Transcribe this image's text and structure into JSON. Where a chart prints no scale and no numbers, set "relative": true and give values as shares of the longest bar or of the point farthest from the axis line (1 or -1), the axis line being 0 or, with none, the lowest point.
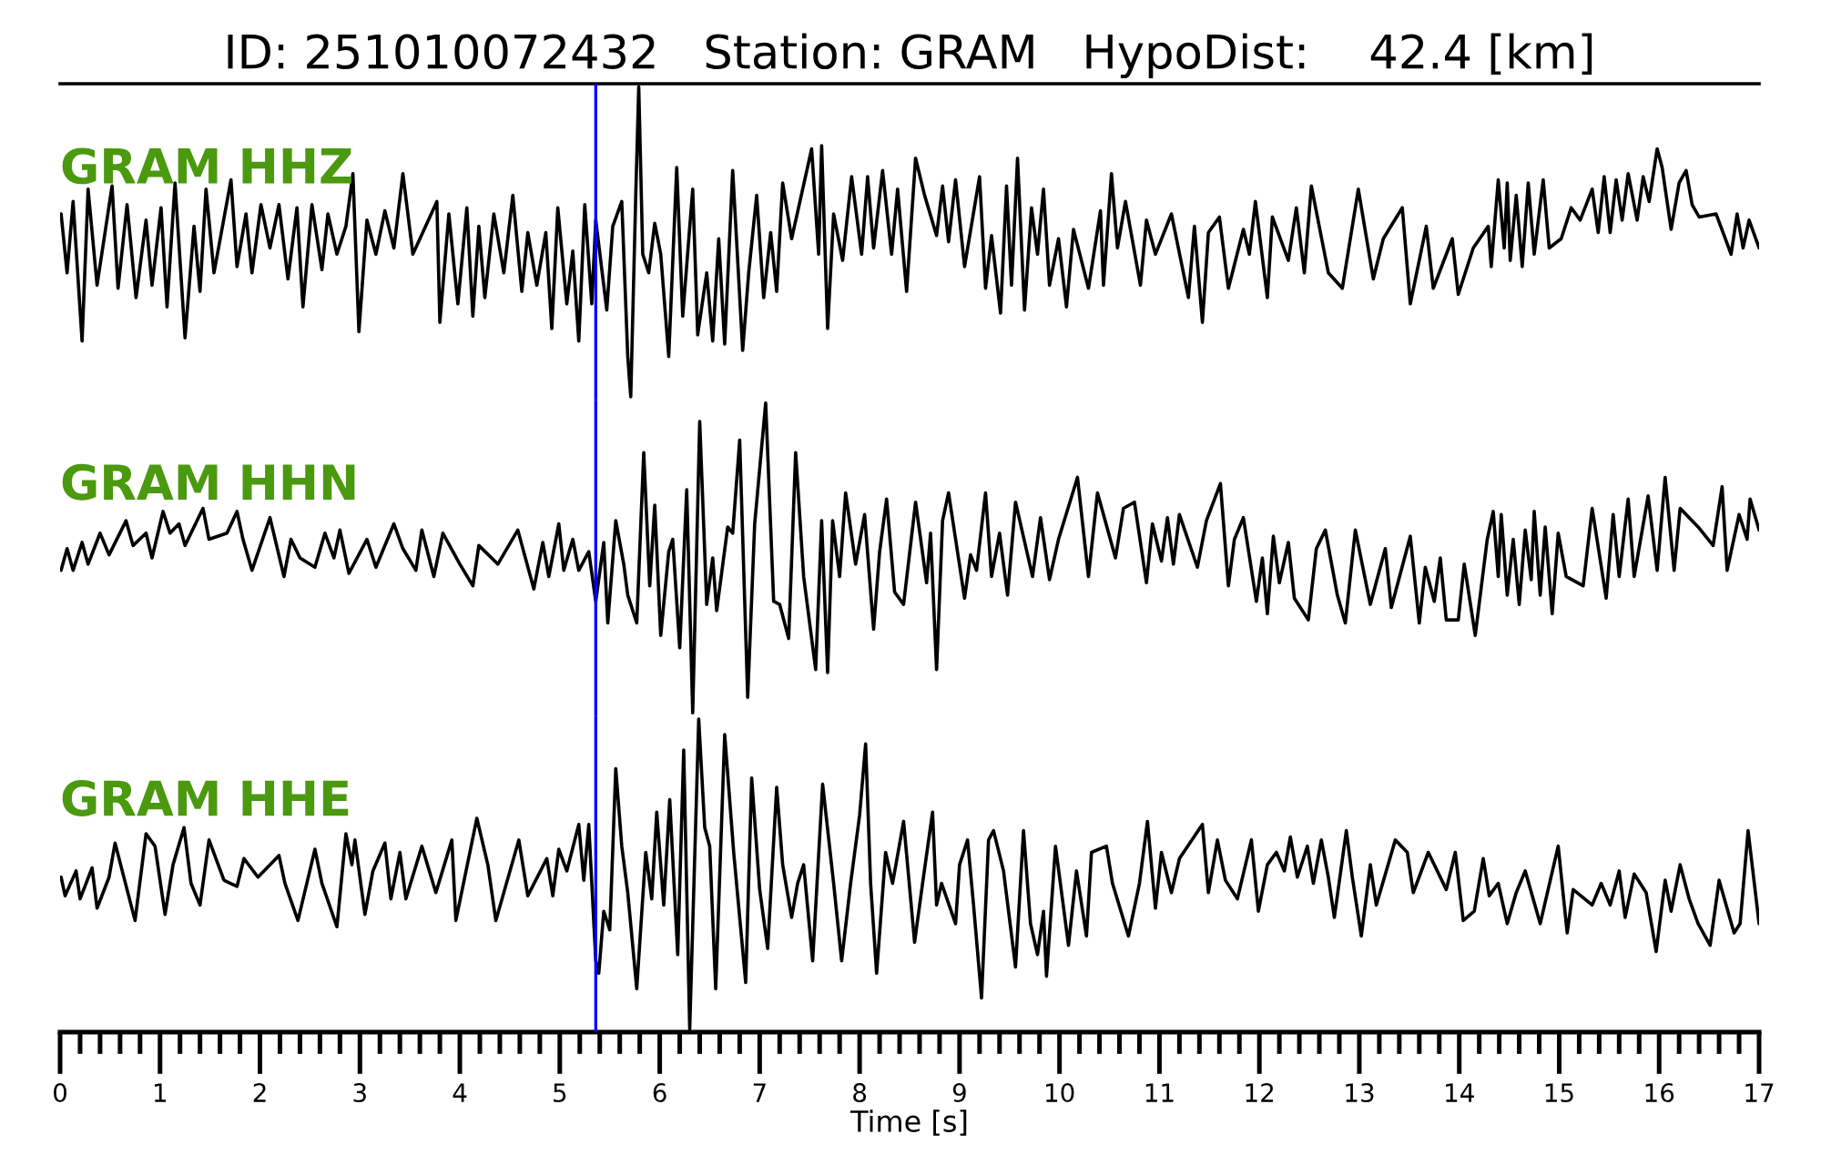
{
  "chart_data": [
    {
      "type": "line",
      "title": "ID: 251010072432   Station: GRAM   HypoDist:    42.4 [km]",
      "relative": true,
      "xlim": [
        0,
        17
      ],
      "tick_labels": false,
      "ref_lines": [
        {
          "axis": "x",
          "value": 5.36,
          "color": "#0000ff"
        }
      ],
      "series": [
        {
          "name": "GRAM HHZ",
          "color": "#000000",
          "x": [
            0.01,
            0.07,
            0.13,
            0.22,
            0.28,
            0.37,
            0.52,
            0.58,
            0.67,
            0.76,
            0.86,
            0.92,
            1.01,
            1.07,
            1.15,
            1.25,
            1.34,
            1.4,
            1.46,
            1.54,
            1.71,
            1.77,
            1.86,
            1.92,
            2.01,
            2.1,
            2.19,
            2.28,
            2.37,
            2.43,
            2.52,
            2.62,
            2.68,
            2.77,
            2.86,
            2.93,
            2.99,
            3.07,
            3.16,
            3.25,
            3.34,
            3.43,
            3.53,
            3.77,
            3.8,
            3.89,
            3.98,
            4.07,
            4.13,
            4.19,
            4.25,
            4.34,
            4.44,
            4.53,
            4.62,
            4.68,
            4.77,
            4.86,
            4.92,
            4.98,
            5.07,
            5.13,
            5.19,
            5.25,
            5.32,
            5.36,
            5.47,
            5.53,
            5.62,
            5.68,
            5.71,
            5.76,
            5.79,
            5.83,
            5.89,
            5.95,
            6.01,
            6.09,
            6.17,
            6.23,
            6.33,
            6.38,
            6.47,
            6.53,
            6.59,
            6.65,
            6.73,
            6.83,
            6.89,
            6.97,
            7.04,
            7.11,
            7.17,
            7.23,
            7.32,
            7.52,
            7.59,
            7.62,
            7.68,
            7.74,
            7.83,
            7.92,
            8.02,
            8.08,
            8.14,
            8.23,
            8.32,
            8.38,
            8.47,
            8.56,
            8.65,
            8.77,
            8.83,
            8.89,
            8.96,
            9.05,
            9.2,
            9.26,
            9.32,
            9.41,
            9.47,
            9.52,
            9.58,
            9.65,
            9.72,
            9.78,
            9.84,
            9.9,
            9.99,
            10.07,
            10.14,
            10.29,
            10.41,
            10.44,
            10.52,
            10.58,
            10.66,
            10.81,
            10.87,
            10.96,
            11.12,
            11.29,
            11.35,
            11.43,
            11.49,
            11.6,
            11.69,
            11.84,
            11.9,
            11.96,
            12.08,
            12.13,
            12.29,
            12.37,
            12.45,
            12.52,
            12.69,
            12.83,
            12.99,
            13.14,
            13.24,
            13.43,
            13.51,
            13.67,
            13.74,
            13.93,
            13.99,
            14.14,
            14.29,
            14.32,
            14.39,
            14.45,
            14.48,
            14.51,
            14.57,
            14.63,
            14.69,
            14.75,
            14.84,
            14.9,
            15.02,
            15.12,
            15.21,
            15.33,
            15.39,
            15.45,
            15.51,
            15.57,
            15.63,
            15.69,
            15.78,
            15.84,
            15.9,
            15.98,
            16.03,
            16.12,
            16.2,
            16.27,
            16.33,
            16.4,
            16.57,
            16.72,
            16.78,
            16.84,
            16.9,
            17.0
          ],
          "values": [
            0.59,
            0.4,
            0.63,
            0.18,
            0.67,
            0.36,
            0.68,
            0.35,
            0.62,
            0.32,
            0.57,
            0.36,
            0.61,
            0.29,
            0.69,
            0.19,
            0.55,
            0.34,
            0.67,
            0.4,
            0.7,
            0.42,
            0.59,
            0.4,
            0.62,
            0.48,
            0.62,
            0.38,
            0.61,
            0.29,
            0.62,
            0.41,
            0.59,
            0.46,
            0.55,
            0.72,
            0.21,
            0.57,
            0.46,
            0.6,
            0.48,
            0.72,
            0.46,
            0.63,
            0.24,
            0.59,
            0.3,
            0.61,
            0.26,
            0.55,
            0.32,
            0.59,
            0.4,
            0.65,
            0.34,
            0.53,
            0.36,
            0.53,
            0.22,
            0.61,
            0.3,
            0.47,
            0.18,
            0.62,
            0.3,
            0.57,
            0.28,
            0.55,
            0.63,
            0.13,
            0.0,
            0.65,
            1.0,
            0.46,
            0.4,
            0.56,
            0.46,
            0.13,
            0.74,
            0.26,
            0.67,
            0.2,
            0.4,
            0.18,
            0.51,
            0.17,
            0.73,
            0.15,
            0.4,
            0.65,
            0.32,
            0.53,
            0.34,
            0.69,
            0.51,
            0.8,
            0.46,
            0.81,
            0.22,
            0.59,
            0.44,
            0.71,
            0.46,
            0.71,
            0.48,
            0.73,
            0.46,
            0.67,
            0.34,
            0.77,
            0.65,
            0.52,
            0.68,
            0.5,
            0.7,
            0.42,
            0.71,
            0.35,
            0.52,
            0.27,
            0.68,
            0.36,
            0.77,
            0.28,
            0.61,
            0.46,
            0.67,
            0.36,
            0.51,
            0.29,
            0.54,
            0.35,
            0.6,
            0.36,
            0.72,
            0.48,
            0.63,
            0.36,
            0.57,
            0.46,
            0.59,
            0.32,
            0.55,
            0.24,
            0.53,
            0.58,
            0.35,
            0.54,
            0.46,
            0.63,
            0.32,
            0.58,
            0.44,
            0.61,
            0.4,
            0.68,
            0.4,
            0.35,
            0.67,
            0.38,
            0.51,
            0.61,
            0.3,
            0.55,
            0.35,
            0.51,
            0.33,
            0.48,
            0.55,
            0.42,
            0.7,
            0.48,
            0.69,
            0.44,
            0.65,
            0.42,
            0.69,
            0.46,
            0.7,
            0.48,
            0.51,
            0.61,
            0.57,
            0.67,
            0.53,
            0.71,
            0.53,
            0.7,
            0.57,
            0.72,
            0.57,
            0.71,
            0.63,
            0.8,
            0.74,
            0.54,
            0.69,
            0.73,
            0.62,
            0.58,
            0.59,
            0.46,
            0.59,
            0.48,
            0.57,
            0.48
          ]
        }
      ]
    },
    {
      "type": "line",
      "relative": true,
      "xlim": [
        0,
        17
      ],
      "tick_labels": false,
      "ref_lines": [
        {
          "axis": "x",
          "value": 5.36,
          "color": "#0000ff"
        }
      ],
      "series": [
        {
          "name": "GRAM HHN",
          "color": "#000000",
          "x": [
            0.01,
            0.07,
            0.13,
            0.22,
            0.28,
            0.4,
            0.49,
            0.66,
            0.73,
            0.86,
            0.92,
            1.03,
            1.1,
            1.19,
            1.25,
            1.43,
            1.49,
            1.67,
            1.77,
            1.83,
            1.92,
            2.1,
            2.24,
            2.31,
            2.4,
            2.55,
            2.65,
            2.74,
            2.8,
            2.89,
            3.07,
            3.16,
            3.34,
            3.43,
            3.56,
            3.62,
            3.74,
            3.83,
            4.0,
            4.13,
            4.19,
            4.38,
            4.58,
            4.74,
            4.83,
            4.89,
            4.99,
            5.04,
            5.13,
            5.19,
            5.29,
            5.36,
            5.44,
            5.48,
            5.56,
            5.64,
            5.68,
            5.77,
            5.84,
            5.9,
            5.95,
            6.01,
            6.09,
            6.13,
            6.2,
            6.27,
            6.33,
            6.4,
            6.47,
            6.53,
            6.57,
            6.68,
            6.73,
            6.8,
            6.88,
            6.95,
            7.06,
            7.14,
            7.2,
            7.29,
            7.36,
            7.44,
            7.56,
            7.62,
            7.68,
            7.73,
            7.8,
            7.86,
            7.96,
            8.05,
            8.14,
            8.2,
            8.27,
            8.35,
            8.44,
            8.56,
            8.67,
            8.71,
            8.77,
            8.83,
            8.89,
            9.05,
            9.11,
            9.17,
            9.26,
            9.32,
            9.4,
            9.48,
            9.56,
            9.73,
            9.81,
            9.9,
            9.99,
            10.18,
            10.29,
            10.38,
            10.56,
            10.64,
            10.75,
            10.87,
            10.93,
            11.02,
            11.08,
            11.14,
            11.2,
            11.38,
            11.47,
            11.61,
            11.69,
            11.75,
            11.84,
            11.97,
            12.03,
            12.08,
            12.14,
            12.2,
            12.29,
            12.35,
            12.49,
            12.57,
            12.66,
            12.78,
            12.86,
            12.96,
            13.11,
            13.26,
            13.32,
            13.51,
            13.6,
            13.66,
            13.75,
            13.81,
            13.87,
            13.99,
            14.05,
            14.16,
            14.28,
            14.34,
            14.39,
            14.42,
            14.48,
            14.54,
            14.6,
            14.66,
            14.72,
            14.75,
            14.81,
            14.86,
            14.93,
            14.99,
            15.07,
            15.24,
            15.33,
            15.47,
            15.54,
            15.6,
            15.69,
            15.75,
            15.89,
            15.98,
            16.06,
            16.15,
            16.21,
            16.39,
            16.54,
            16.63,
            16.68,
            16.8,
            16.88,
            16.91,
            17.0
          ],
          "values": [
            0.46,
            0.53,
            0.46,
            0.55,
            0.48,
            0.58,
            0.51,
            0.62,
            0.54,
            0.58,
            0.5,
            0.65,
            0.58,
            0.61,
            0.54,
            0.66,
            0.56,
            0.58,
            0.65,
            0.56,
            0.46,
            0.63,
            0.44,
            0.56,
            0.5,
            0.47,
            0.58,
            0.5,
            0.59,
            0.45,
            0.56,
            0.47,
            0.61,
            0.53,
            0.46,
            0.59,
            0.44,
            0.58,
            0.48,
            0.41,
            0.54,
            0.48,
            0.59,
            0.4,
            0.55,
            0.44,
            0.61,
            0.46,
            0.56,
            0.46,
            0.52,
            0.36,
            0.55,
            0.29,
            0.62,
            0.48,
            0.38,
            0.29,
            0.84,
            0.41,
            0.67,
            0.25,
            0.52,
            0.56,
            0.21,
            0.72,
            0.0,
            0.94,
            0.35,
            0.5,
            0.33,
            0.6,
            0.58,
            0.88,
            0.05,
            0.61,
            1.0,
            0.36,
            0.35,
            0.24,
            0.84,
            0.44,
            0.14,
            0.62,
            0.13,
            0.62,
            0.44,
            0.71,
            0.48,
            0.64,
            0.27,
            0.52,
            0.69,
            0.39,
            0.35,
            0.68,
            0.42,
            0.58,
            0.14,
            0.62,
            0.71,
            0.37,
            0.51,
            0.46,
            0.71,
            0.44,
            0.58,
            0.38,
            0.68,
            0.44,
            0.63,
            0.43,
            0.56,
            0.76,
            0.44,
            0.71,
            0.5,
            0.66,
            0.68,
            0.42,
            0.61,
            0.49,
            0.63,
            0.48,
            0.64,
            0.47,
            0.62,
            0.74,
            0.41,
            0.56,
            0.63,
            0.36,
            0.5,
            0.32,
            0.57,
            0.42,
            0.55,
            0.37,
            0.3,
            0.53,
            0.59,
            0.38,
            0.29,
            0.59,
            0.35,
            0.53,
            0.34,
            0.57,
            0.29,
            0.47,
            0.36,
            0.5,
            0.3,
            0.3,
            0.48,
            0.25,
            0.56,
            0.65,
            0.44,
            0.64,
            0.38,
            0.56,
            0.35,
            0.59,
            0.43,
            0.65,
            0.38,
            0.6,
            0.32,
            0.58,
            0.44,
            0.41,
            0.66,
            0.37,
            0.64,
            0.44,
            0.69,
            0.44,
            0.7,
            0.46,
            0.76,
            0.46,
            0.66,
            0.6,
            0.54,
            0.73,
            0.46,
            0.64,
            0.56,
            0.69,
            0.59
          ]
        }
      ]
    },
    {
      "type": "line",
      "relative": true,
      "xlabel": "Time [s]",
      "xlim": [
        0,
        17
      ],
      "tick_labels": "x",
      "xticks": [
        0,
        {
          "value": 0.2,
          "label": null
        },
        {
          "value": 0.4,
          "label": null
        },
        {
          "value": 0.6,
          "label": null
        },
        {
          "value": 0.8,
          "label": null
        },
        1,
        {
          "value": 1.2,
          "label": null
        },
        {
          "value": 1.4,
          "label": null
        },
        {
          "value": 1.6,
          "label": null
        },
        {
          "value": 1.8,
          "label": null
        },
        2,
        {
          "value": 2.2,
          "label": null
        },
        {
          "value": 2.4,
          "label": null
        },
        {
          "value": 2.6,
          "label": null
        },
        {
          "value": 2.8,
          "label": null
        },
        3,
        {
          "value": 3.2,
          "label": null
        },
        {
          "value": 3.4,
          "label": null
        },
        {
          "value": 3.6,
          "label": null
        },
        {
          "value": 3.8,
          "label": null
        },
        4,
        {
          "value": 4.2,
          "label": null
        },
        {
          "value": 4.4,
          "label": null
        },
        {
          "value": 4.6,
          "label": null
        },
        {
          "value": 4.8,
          "label": null
        },
        5,
        {
          "value": 5.2,
          "label": null
        },
        {
          "value": 5.4,
          "label": null
        },
        {
          "value": 5.6,
          "label": null
        },
        {
          "value": 5.8,
          "label": null
        },
        6,
        {
          "value": 6.2,
          "label": null
        },
        {
          "value": 6.4,
          "label": null
        },
        {
          "value": 6.6,
          "label": null
        },
        {
          "value": 6.8,
          "label": null
        },
        7,
        {
          "value": 7.2,
          "label": null
        },
        {
          "value": 7.4,
          "label": null
        },
        {
          "value": 7.6,
          "label": null
        },
        {
          "value": 7.8,
          "label": null
        },
        8,
        {
          "value": 8.2,
          "label": null
        },
        {
          "value": 8.4,
          "label": null
        },
        {
          "value": 8.6,
          "label": null
        },
        {
          "value": 8.8,
          "label": null
        },
        9,
        {
          "value": 9.2,
          "label": null
        },
        {
          "value": 9.4,
          "label": null
        },
        {
          "value": 9.6,
          "label": null
        },
        {
          "value": 9.8,
          "label": null
        },
        10,
        {
          "value": 10.2,
          "label": null
        },
        {
          "value": 10.4,
          "label": null
        },
        {
          "value": 10.6,
          "label": null
        },
        {
          "value": 10.8,
          "label": null
        },
        11,
        {
          "value": 11.2,
          "label": null
        },
        {
          "value": 11.4,
          "label": null
        },
        {
          "value": 11.6,
          "label": null
        },
        {
          "value": 11.8,
          "label": null
        },
        12,
        {
          "value": 12.2,
          "label": null
        },
        {
          "value": 12.4,
          "label": null
        },
        {
          "value": 12.6,
          "label": null
        },
        {
          "value": 12.8,
          "label": null
        },
        13,
        {
          "value": 13.2,
          "label": null
        },
        {
          "value": 13.4,
          "label": null
        },
        {
          "value": 13.6,
          "label": null
        },
        {
          "value": 13.8,
          "label": null
        },
        14,
        {
          "value": 14.2,
          "label": null
        },
        {
          "value": 14.4,
          "label": null
        },
        {
          "value": 14.6,
          "label": null
        },
        {
          "value": 14.8,
          "label": null
        },
        15,
        {
          "value": 15.2,
          "label": null
        },
        {
          "value": 15.4,
          "label": null
        },
        {
          "value": 15.6,
          "label": null
        },
        {
          "value": 15.8,
          "label": null
        },
        16,
        {
          "value": 16.2,
          "label": null
        },
        {
          "value": 16.4,
          "label": null
        },
        {
          "value": 16.6,
          "label": null
        },
        {
          "value": 16.8,
          "label": null
        },
        17
      ],
      "ref_lines": [
        {
          "axis": "x",
          "value": 5.36,
          "color": "#0000ff"
        }
      ],
      "series": [
        {
          "name": "GRAM HHE",
          "color": "#000000",
          "x": [
            0.01,
            0.05,
            0.16,
            0.2,
            0.32,
            0.37,
            0.49,
            0.55,
            0.67,
            0.75,
            0.86,
            0.95,
            1.05,
            1.13,
            1.24,
            1.31,
            1.4,
            1.49,
            1.64,
            1.77,
            1.84,
            1.98,
            2.19,
            2.25,
            2.38,
            2.55,
            2.62,
            2.77,
            2.86,
            2.92,
            2.95,
            3.05,
            3.13,
            3.25,
            3.31,
            3.4,
            3.46,
            3.62,
            3.76,
            3.92,
            3.96,
            4.17,
            4.28,
            4.36,
            4.59,
            4.68,
            4.87,
            4.93,
            4.99,
            5.07,
            5.19,
            5.24,
            5.29,
            5.36,
            5.39,
            5.44,
            5.5,
            5.56,
            5.62,
            5.68,
            5.77,
            5.86,
            5.92,
            5.97,
            6.04,
            6.1,
            6.18,
            6.24,
            6.3,
            6.39,
            6.45,
            6.5,
            6.56,
            6.65,
            6.74,
            6.86,
            6.92,
            7.0,
            7.08,
            7.17,
            7.23,
            7.32,
            7.38,
            7.44,
            7.53,
            7.63,
            7.74,
            7.82,
            7.91,
            8.0,
            8.06,
            8.11,
            8.17,
            8.26,
            8.33,
            8.44,
            8.55,
            8.63,
            8.73,
            8.77,
            8.82,
            8.96,
            9.0,
            9.08,
            9.14,
            9.22,
            9.29,
            9.34,
            9.44,
            9.56,
            9.64,
            9.71,
            9.78,
            9.84,
            9.87,
            9.96,
            10.09,
            10.17,
            10.27,
            10.32,
            10.47,
            10.53,
            10.69,
            10.8,
            10.88,
            10.96,
            11.02,
            11.12,
            11.2,
            11.43,
            11.49,
            11.58,
            11.66,
            11.78,
            11.92,
            11.99,
            12.08,
            12.17,
            12.25,
            12.31,
            12.38,
            12.48,
            12.54,
            12.62,
            12.69,
            12.75,
            12.87,
            12.93,
            13.02,
            13.11,
            13.17,
            13.36,
            13.48,
            13.54,
            13.69,
            13.87,
            13.96,
            14.04,
            14.15,
            14.24,
            14.3,
            14.39,
            14.48,
            14.57,
            14.66,
            14.81,
            14.99,
            15.08,
            15.14,
            15.33,
            15.42,
            15.51,
            15.6,
            15.66,
            15.75,
            15.87,
            15.97,
            16.06,
            16.12,
            16.21,
            16.3,
            16.39,
            16.51,
            16.6,
            16.75,
            16.81,
            16.89,
            17.0
          ],
          "values": [
            0.49,
            0.43,
            0.51,
            0.42,
            0.52,
            0.39,
            0.49,
            0.6,
            0.45,
            0.35,
            0.63,
            0.59,
            0.37,
            0.53,
            0.65,
            0.47,
            0.4,
            0.61,
            0.48,
            0.46,
            0.55,
            0.49,
            0.56,
            0.47,
            0.35,
            0.58,
            0.47,
            0.33,
            0.63,
            0.53,
            0.61,
            0.37,
            0.51,
            0.6,
            0.42,
            0.57,
            0.42,
            0.59,
            0.44,
            0.61,
            0.35,
            0.68,
            0.53,
            0.35,
            0.61,
            0.43,
            0.55,
            0.43,
            0.58,
            0.51,
            0.66,
            0.48,
            0.66,
            0.22,
            0.18,
            0.38,
            0.32,
            0.84,
            0.59,
            0.44,
            0.13,
            0.57,
            0.42,
            0.7,
            0.4,
            0.74,
            0.24,
            0.9,
            0.0,
            1.0,
            0.65,
            0.59,
            0.13,
            0.95,
            0.57,
            0.15,
            0.81,
            0.45,
            0.26,
            0.78,
            0.53,
            0.36,
            0.47,
            0.53,
            0.22,
            0.79,
            0.47,
            0.22,
            0.47,
            0.69,
            0.92,
            0.47,
            0.18,
            0.57,
            0.47,
            0.67,
            0.28,
            0.47,
            0.7,
            0.4,
            0.47,
            0.34,
            0.53,
            0.61,
            0.4,
            0.1,
            0.61,
            0.64,
            0.51,
            0.2,
            0.64,
            0.34,
            0.24,
            0.38,
            0.17,
            0.59,
            0.27,
            0.51,
            0.3,
            0.57,
            0.59,
            0.47,
            0.3,
            0.47,
            0.67,
            0.39,
            0.57,
            0.44,
            0.55,
            0.66,
            0.44,
            0.61,
            0.48,
            0.42,
            0.61,
            0.38,
            0.53,
            0.57,
            0.51,
            0.62,
            0.49,
            0.59,
            0.47,
            0.61,
            0.49,
            0.36,
            0.64,
            0.49,
            0.3,
            0.53,
            0.4,
            0.61,
            0.57,
            0.44,
            0.57,
            0.45,
            0.57,
            0.35,
            0.38,
            0.55,
            0.43,
            0.47,
            0.34,
            0.44,
            0.51,
            0.34,
            0.59,
            0.31,
            0.45,
            0.4,
            0.47,
            0.4,
            0.51,
            0.36,
            0.5,
            0.44,
            0.25,
            0.48,
            0.38,
            0.53,
            0.42,
            0.34,
            0.27,
            0.48,
            0.31,
            0.34,
            0.64,
            0.34
          ]
        }
      ]
    }
  ]
}
